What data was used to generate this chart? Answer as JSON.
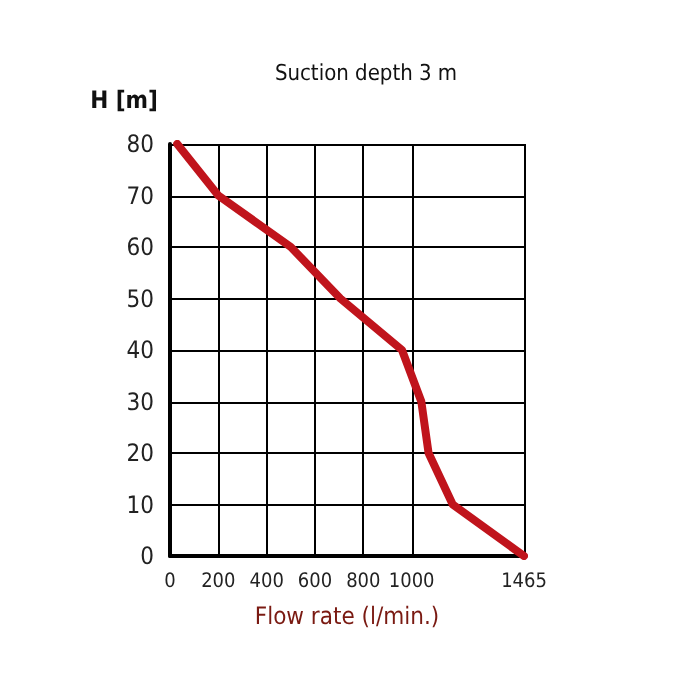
{
  "chart_data": {
    "type": "line",
    "title": "Suction depth 3 m",
    "xlabel": "Flow rate (l/min.)",
    "ylabel": "H [m]",
    "x": [
      30,
      200,
      500,
      705,
      960,
      1040,
      1070,
      1170,
      1465
    ],
    "series": [
      {
        "color": "#c0141c",
        "values": [
          80,
          70,
          60,
          50,
          40,
          30,
          20,
          10,
          0
        ]
      }
    ],
    "xlim": [
      0,
      1465
    ],
    "xticks": [
      0,
      200,
      400,
      600,
      800,
      1000,
      1465
    ],
    "ylim": [
      0,
      80
    ],
    "yticks": [
      0,
      10,
      20,
      30,
      40,
      50,
      60,
      70,
      80
    ],
    "grid": true,
    "marker": "none",
    "line_style": "solid"
  }
}
